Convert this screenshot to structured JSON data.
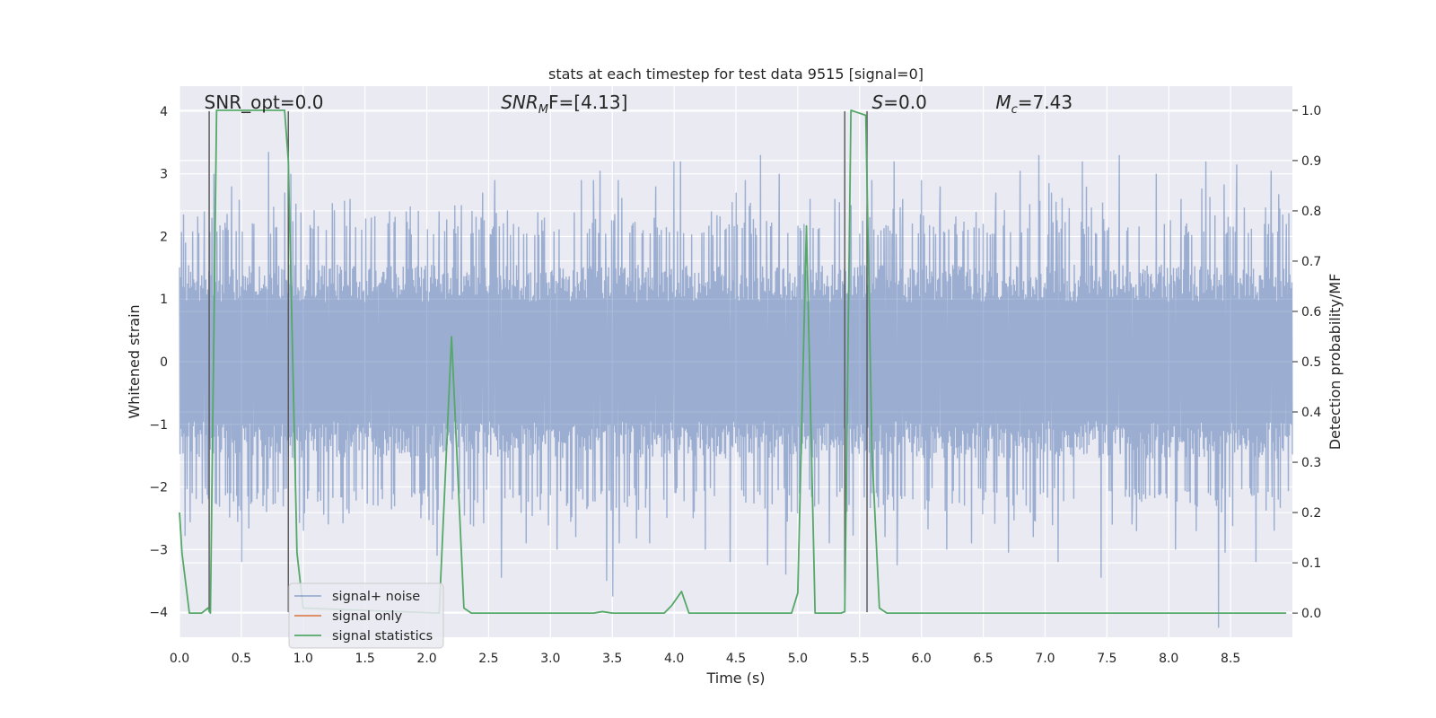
{
  "chart_data": {
    "type": "line",
    "title": "stats at each timestep for test data 9515 [signal=0]",
    "xlabel": "Time (s)",
    "ylabel": "Whitened strain",
    "y2label": "Detection probability/MF",
    "xlim": [
      0.0,
      9.0
    ],
    "ylim": [
      -4.4,
      4.4
    ],
    "y2lim": [
      -0.048,
      1.048
    ],
    "xticks": [
      0.0,
      0.5,
      1.0,
      1.5,
      2.0,
      2.5,
      3.0,
      3.5,
      4.0,
      4.5,
      5.0,
      5.5,
      6.0,
      6.5,
      7.0,
      7.5,
      8.0,
      8.5
    ],
    "xtick_labels": [
      "0.0",
      "0.5",
      "1.0",
      "1.5",
      "2.0",
      "2.5",
      "3.0",
      "3.5",
      "4.0",
      "4.5",
      "5.0",
      "5.5",
      "6.0",
      "6.5",
      "7.0",
      "7.5",
      "8.0",
      "8.5"
    ],
    "yticks": [
      -4,
      -3,
      -2,
      -1,
      0,
      1,
      2,
      3,
      4
    ],
    "ytick_labels": [
      "−4",
      "−3",
      "−2",
      "−1",
      "0",
      "1",
      "2",
      "3",
      "4"
    ],
    "y2ticks": [
      0.0,
      0.1,
      0.2,
      0.3,
      0.4,
      0.5,
      0.6,
      0.7,
      0.8,
      0.9,
      1.0
    ],
    "y2tick_labels": [
      "0.0",
      "0.1",
      "0.2",
      "0.3",
      "0.4",
      "0.5",
      "0.6",
      "0.7",
      "0.8",
      "0.9",
      "1.0"
    ],
    "grid": true,
    "legend_position": "lower-left",
    "annotations": [
      {
        "kind": "plain",
        "text": "SNR_opt=0.0",
        "x": 0.2,
        "y": 4.1
      },
      {
        "kind": "snrmf",
        "main": "SNR",
        "sub": "M",
        "rest": "F=[4.13]",
        "x": 2.6,
        "y": 4.1
      },
      {
        "kind": "s",
        "main": "S",
        "rest": "=0.0",
        "x": 5.6,
        "y": 4.1
      },
      {
        "kind": "mc",
        "main": "M",
        "sub": "c",
        "rest": "=7.43",
        "x": 6.6,
        "y": 4.1
      }
    ],
    "vlines": [
      {
        "x": 0.24,
        "y0": -4.0,
        "y1": 4.0
      },
      {
        "x": 0.88,
        "y0": -4.0,
        "y1": 4.0
      },
      {
        "x": 5.38,
        "y0": -4.0,
        "y1": 4.0
      },
      {
        "x": 5.56,
        "y0": -4.0,
        "y1": 4.0
      }
    ],
    "series": [
      {
        "name": "signal+ noise",
        "color": "#4c72b0",
        "opacity": 0.5,
        "axis": "left",
        "envelope": {
          "n_samples": 2200,
          "seed": 9515,
          "core_amplitude": 1.55,
          "spike_peaks": [
            [
              0.05,
              1.9
            ],
            [
              0.2,
              2.4
            ],
            [
              0.28,
              3.0
            ],
            [
              0.42,
              2.8
            ],
            [
              0.5,
              3.55
            ],
            [
              0.6,
              2.2
            ],
            [
              0.7,
              2.5
            ],
            [
              0.72,
              3.35
            ],
            [
              0.85,
              2.7
            ],
            [
              0.9,
              3.0
            ],
            [
              1.2,
              2.2
            ],
            [
              1.38,
              2.6
            ],
            [
              1.55,
              2.3
            ],
            [
              1.7,
              2.4
            ],
            [
              1.95,
              2.3
            ],
            [
              2.1,
              2.4
            ],
            [
              2.28,
              2.5
            ],
            [
              2.45,
              2.7
            ],
            [
              2.55,
              2.9
            ],
            [
              2.7,
              2.2
            ],
            [
              2.95,
              2.3
            ],
            [
              3.05,
              2.6
            ],
            [
              3.25,
              2.9
            ],
            [
              3.35,
              2.0
            ],
            [
              3.4,
              3.05
            ],
            [
              3.55,
              2.9
            ],
            [
              3.75,
              2.1
            ],
            [
              3.85,
              2.8
            ],
            [
              4.0,
              3.2
            ],
            [
              4.05,
              3.2
            ],
            [
              4.3,
              2.4
            ],
            [
              4.5,
              2.7
            ],
            [
              4.7,
              3.3
            ],
            [
              4.85,
              3.0
            ],
            [
              5.05,
              2.2
            ],
            [
              5.3,
              2.6
            ],
            [
              5.43,
              2.5
            ],
            [
              5.6,
              2.9
            ],
            [
              5.78,
              3.2
            ],
            [
              5.85,
              2.6
            ],
            [
              6.0,
              2.9
            ],
            [
              6.15,
              2.8
            ],
            [
              6.4,
              3.45
            ],
            [
              6.6,
              2.7
            ],
            [
              6.8,
              3.05
            ],
            [
              6.95,
              3.3
            ],
            [
              7.05,
              2.7
            ],
            [
              7.3,
              3.2
            ],
            [
              7.5,
              2.1
            ],
            [
              7.6,
              3.3
            ],
            [
              7.9,
              3.0
            ],
            [
              8.1,
              2.6
            ],
            [
              8.3,
              3.2
            ],
            [
              8.45,
              3.0
            ],
            [
              8.55,
              3.15
            ],
            [
              8.7,
              2.9
            ],
            [
              8.83,
              3.05
            ],
            [
              8.95,
              2.2
            ]
          ],
          "dip_troughs": [
            [
              0.1,
              -2.1
            ],
            [
              0.5,
              -3.2
            ],
            [
              0.7,
              -2.4
            ],
            [
              1.0,
              -2.7
            ],
            [
              1.2,
              -2.6
            ],
            [
              1.6,
              -2.3
            ],
            [
              1.95,
              -2.5
            ],
            [
              2.08,
              -3.1
            ],
            [
              2.35,
              -2.6
            ],
            [
              2.6,
              -3.45
            ],
            [
              2.8,
              -2.9
            ],
            [
              3.05,
              -3.0
            ],
            [
              3.2,
              -2.8
            ],
            [
              3.45,
              -3.5
            ],
            [
              3.5,
              -3.75
            ],
            [
              3.8,
              -2.9
            ],
            [
              4.15,
              -2.5
            ],
            [
              4.25,
              -3.0
            ],
            [
              4.45,
              -3.2
            ],
            [
              4.75,
              -3.25
            ],
            [
              4.9,
              -3.4
            ],
            [
              5.25,
              -2.9
            ],
            [
              5.7,
              -2.8
            ],
            [
              5.8,
              -3.25
            ],
            [
              6.2,
              -3.0
            ],
            [
              6.4,
              -2.9
            ],
            [
              6.7,
              -3.05
            ],
            [
              6.9,
              -2.8
            ],
            [
              7.1,
              -3.2
            ],
            [
              7.45,
              -3.45
            ],
            [
              7.7,
              -2.6
            ],
            [
              8.05,
              -3.0
            ],
            [
              8.4,
              -4.25
            ],
            [
              8.45,
              -3.05
            ],
            [
              8.7,
              -3.2
            ],
            [
              8.85,
              -2.7
            ]
          ]
        }
      },
      {
        "name": "signal only",
        "color": "#dd8452",
        "axis": "left",
        "x": [
          0.0,
          9.0
        ],
        "y": [
          0.0,
          0.0
        ]
      },
      {
        "name": "signal statistics",
        "color": "#55a868",
        "axis": "right",
        "x": [
          0.0,
          0.02,
          0.05,
          0.08,
          0.18,
          0.23,
          0.25,
          0.3,
          0.85,
          0.88,
          0.95,
          1.0,
          2.1,
          2.2,
          2.3,
          2.36,
          3.35,
          3.42,
          3.5,
          3.92,
          3.98,
          4.06,
          4.12,
          4.95,
          5.0,
          5.07,
          5.14,
          5.35,
          5.38,
          5.43,
          5.55,
          5.6,
          5.66,
          5.72,
          7.0,
          8.95
        ],
        "y": [
          0.2,
          0.12,
          0.06,
          0.0,
          0.0,
          0.01,
          0.0,
          1.0,
          1.0,
          0.9,
          0.12,
          0.01,
          0.0,
          0.55,
          0.01,
          0.0,
          0.0,
          0.003,
          0.0,
          0.0,
          0.015,
          0.043,
          0.0,
          0.0,
          0.04,
          0.77,
          0.0,
          0.0,
          0.003,
          1.0,
          0.99,
          0.32,
          0.01,
          0.0,
          0.0,
          0.0
        ]
      }
    ]
  }
}
